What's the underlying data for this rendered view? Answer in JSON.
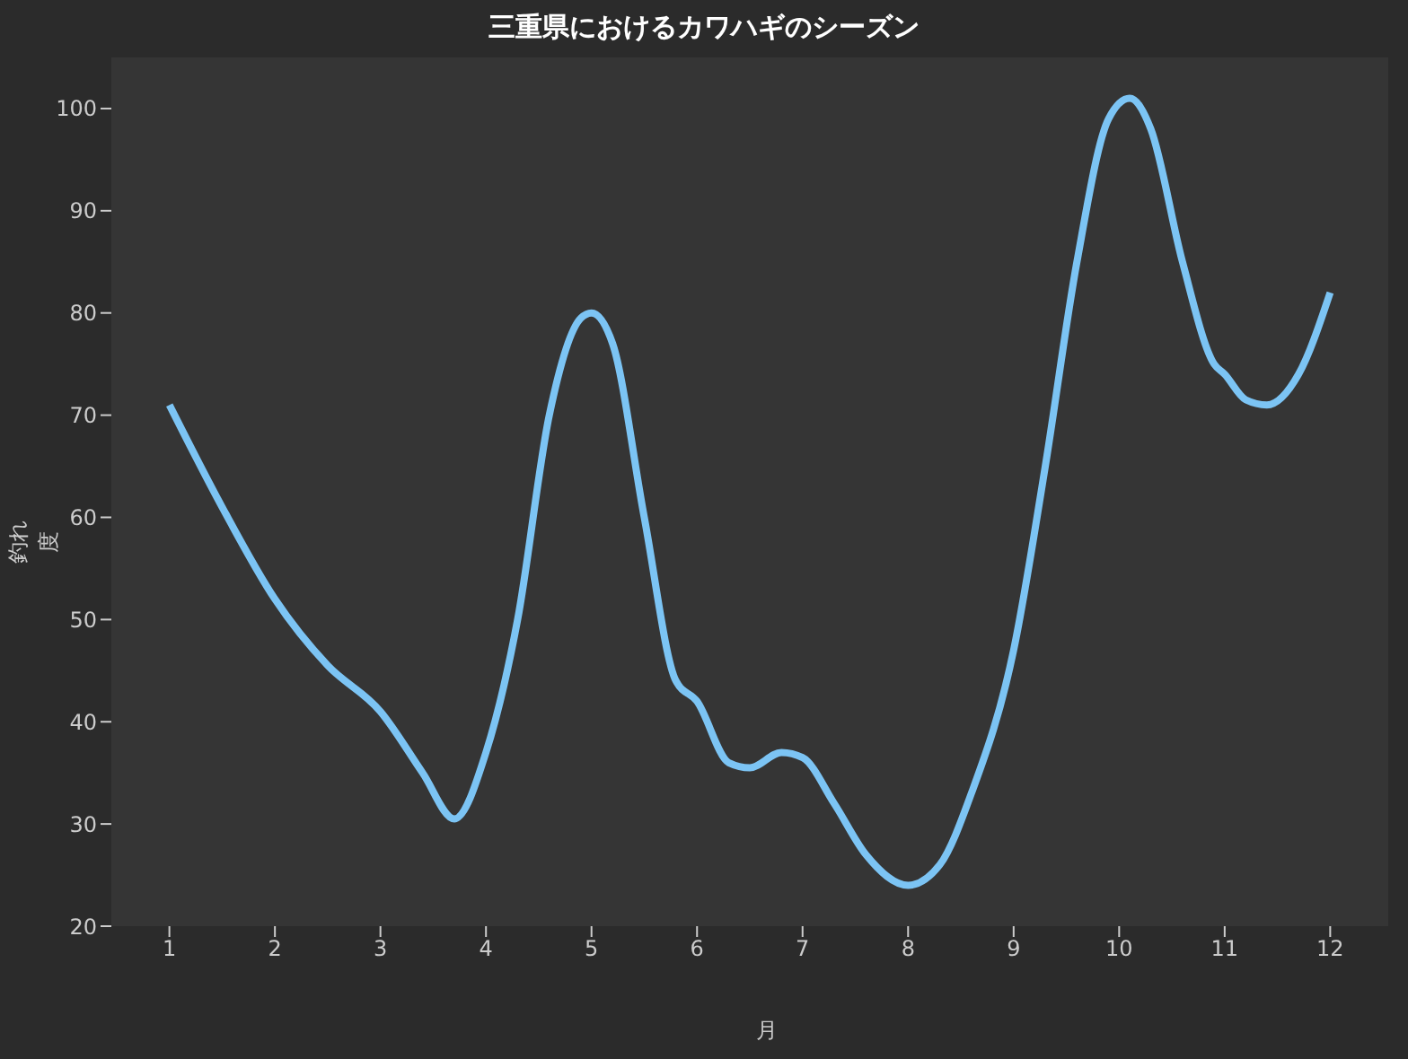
{
  "chart_data": {
    "type": "line",
    "title": "三重県におけるカワハギのシーズン",
    "xlabel": "月",
    "ylabel": "釣れ度",
    "x": [
      1,
      1.5,
      2,
      2.5,
      3,
      3.4,
      3.7,
      4,
      4.3,
      4.6,
      4.9,
      5,
      5.2,
      5.5,
      5.8,
      6,
      6.3,
      6.5,
      6.8,
      7,
      7.3,
      7.6,
      8,
      8.3,
      8.6,
      9,
      9.3,
      9.6,
      9.9,
      10.1,
      10.3,
      10.6,
      10.9,
      11,
      11.2,
      11.4,
      11.7,
      12
    ],
    "series": [
      {
        "color": "#7cc4f4",
        "values": [
          71,
          61,
          52,
          45.5,
          41,
          35,
          30.5,
          37,
          50,
          70,
          79.5,
          80,
          77,
          60,
          44,
          42,
          36,
          35.5,
          37,
          36.5,
          32,
          27,
          24,
          26,
          33,
          47,
          65,
          85,
          99,
          101,
          98,
          85,
          75,
          74,
          71.5,
          71,
          74,
          82
        ]
      }
    ],
    "xlim": [
      0.45,
      12.55
    ],
    "ylim": [
      20,
      105
    ],
    "xticks": [
      1,
      2,
      3,
      4,
      5,
      6,
      7,
      8,
      9,
      10,
      11,
      12
    ],
    "yticks": [
      20,
      30,
      40,
      50,
      60,
      70,
      80,
      90,
      100
    ],
    "grid": false
  }
}
